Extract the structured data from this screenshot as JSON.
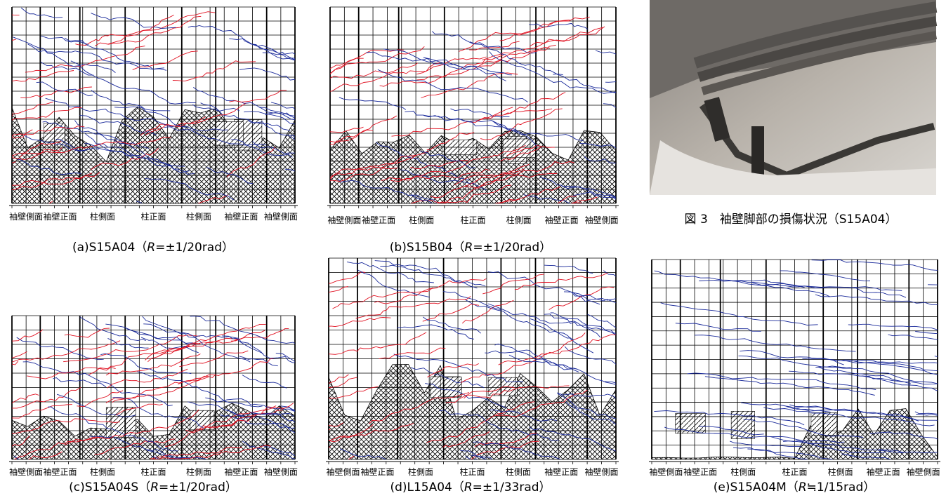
{
  "axis_labels": [
    "袖壁側面",
    "袖壁正面",
    "柱側面",
    "柱正面",
    "柱側面",
    "袖壁正面",
    "袖壁側面"
  ],
  "panels": [
    {
      "caption": [
        "(a)S15A04（",
        "R",
        "=±1/20rad）"
      ]
    },
    {
      "caption": [
        "(b)S15B04（",
        "R",
        "=±1/20rad）"
      ]
    },
    {
      "caption": [
        "(c)S15A04S（",
        "R",
        "=±1/20rad）"
      ]
    },
    {
      "caption": [
        "(d)L15A04（",
        "R",
        "=±1/33rad）"
      ]
    },
    {
      "caption": [
        "(e)S15A04M（",
        "R",
        "≒1/15rad）"
      ]
    }
  ],
  "figure3": {
    "caption": "図 3　袖壁脚部の損傷状況（S15A04）"
  }
}
